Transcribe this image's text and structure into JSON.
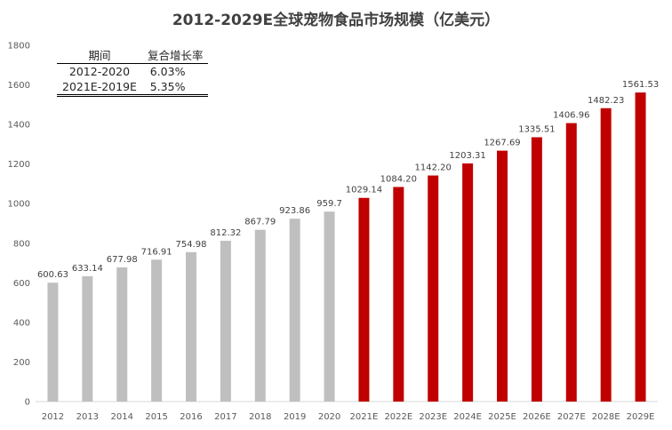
{
  "chart_data": {
    "type": "bar",
    "title": "2012-2029E全球宠物食品市场规模（亿美元）",
    "xlabel": "",
    "ylabel": "",
    "ylim": [
      0,
      1800
    ],
    "yticks": [
      0,
      200,
      400,
      600,
      800,
      1000,
      1200,
      1400,
      1600,
      1800
    ],
    "grid": false,
    "categories": [
      "2012",
      "2013",
      "2014",
      "2015",
      "2016",
      "2017",
      "2018",
      "2019",
      "2020",
      "2021E",
      "2022E",
      "2023E",
      "2024E",
      "2025E",
      "2026E",
      "2027E",
      "2028E",
      "2029E"
    ],
    "values": [
      600.63,
      633.14,
      677.98,
      716.91,
      754.98,
      812.32,
      867.79,
      923.86,
      959.7,
      1029.14,
      1084.2,
      1142.2,
      1203.31,
      1267.69,
      1335.51,
      1406.96,
      1482.23,
      1561.53
    ],
    "value_labels": [
      "600.63",
      "633.14",
      "677.98",
      "716.91",
      "754.98",
      "812.32",
      "867.79",
      "923.86",
      "959.7",
      "1029.14",
      "1084.20",
      "1142.20",
      "1203.31",
      "1267.69",
      "1335.51",
      "1406.96",
      "1482.23",
      "1561.53"
    ],
    "colors": {
      "actual": "#bfbfbf",
      "forecast": "#c00000"
    },
    "forecast_start_index": 9
  },
  "cagr_table": {
    "headers": [
      "期间",
      "复合增长率"
    ],
    "rows": [
      {
        "period": "2012-2020",
        "rate": "6.03%"
      },
      {
        "period": "2021E-2019E",
        "rate": "5.35%"
      }
    ]
  }
}
